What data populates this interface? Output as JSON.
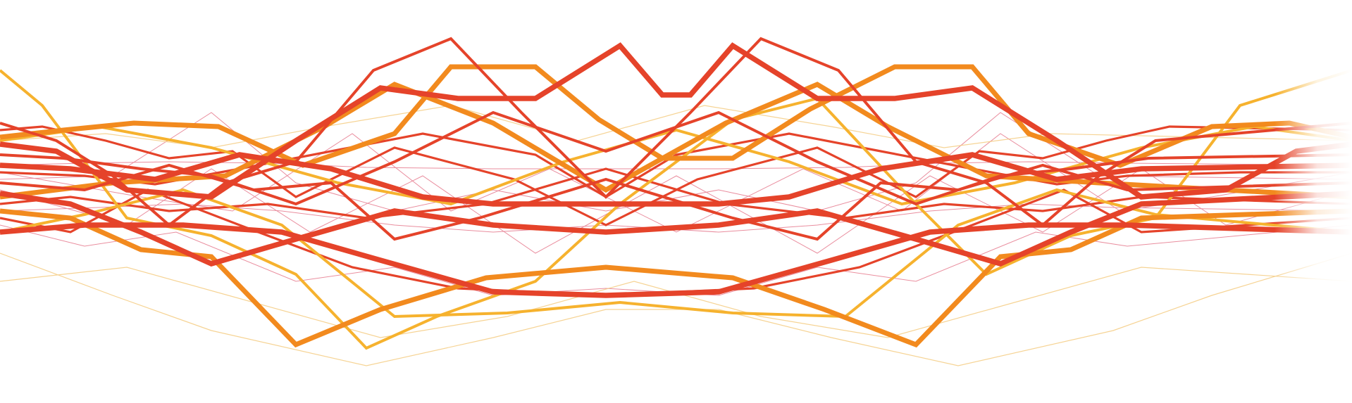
{
  "palette": {
    "red": "#E5432A",
    "orange": "#F28A1E",
    "amber": "#F6B22E",
    "crimson": "#D8314F",
    "pale_amber": "#F4C97A"
  },
  "artwork": {
    "description_visible_text": "",
    "line_count_style": "interwoven zig-zag polylines mirrored around the vertical center"
  }
}
